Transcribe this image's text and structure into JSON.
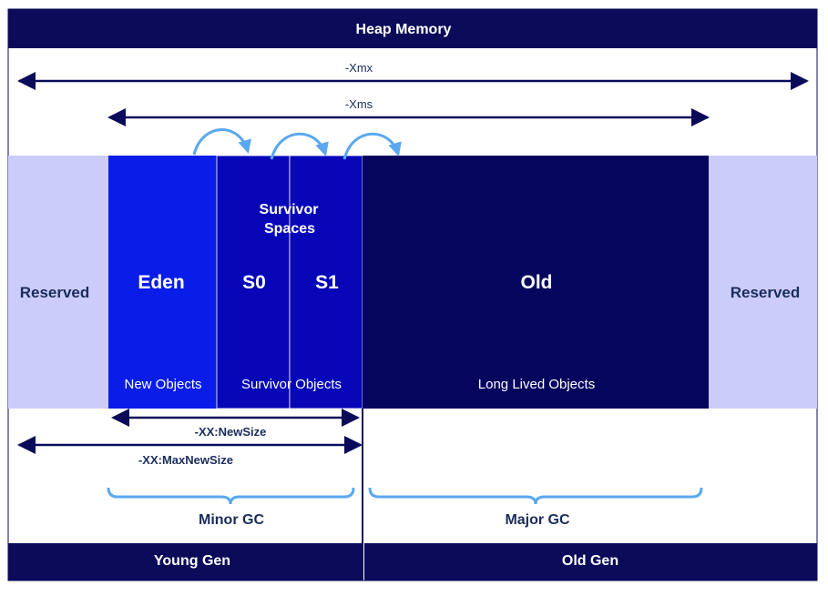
{
  "title": "Heap Memory",
  "dimensions": {
    "xmx": "-Xmx",
    "xms": "-Xms",
    "new_size": "-XX:NewSize",
    "max_new_size": "-XX:MaxNewSize"
  },
  "regions": {
    "reserved_left": "Reserved",
    "reserved_right": "Reserved",
    "eden": {
      "name": "Eden",
      "caption": "New Objects"
    },
    "survivor_title_line1": "Survivor",
    "survivor_title_line2": "Spaces",
    "s0": {
      "name": "S0"
    },
    "s1": {
      "name": "S1"
    },
    "survivor_caption": "Survivor Objects",
    "old": {
      "name": "Old",
      "caption": "Long Lived Objects"
    }
  },
  "gc": {
    "minor": "Minor GC",
    "major": "Major GC"
  },
  "generations": {
    "young": "Young Gen",
    "old": "Old Gen"
  },
  "colors": {
    "header_navy": "#0b0b5a",
    "reserved": "#ccccf8",
    "eden": "#0a1de8",
    "survivor": "#0707b8",
    "old": "#06055e",
    "arrow_blue": "#5aa8f0",
    "label_navy": "#1a2d5a"
  }
}
